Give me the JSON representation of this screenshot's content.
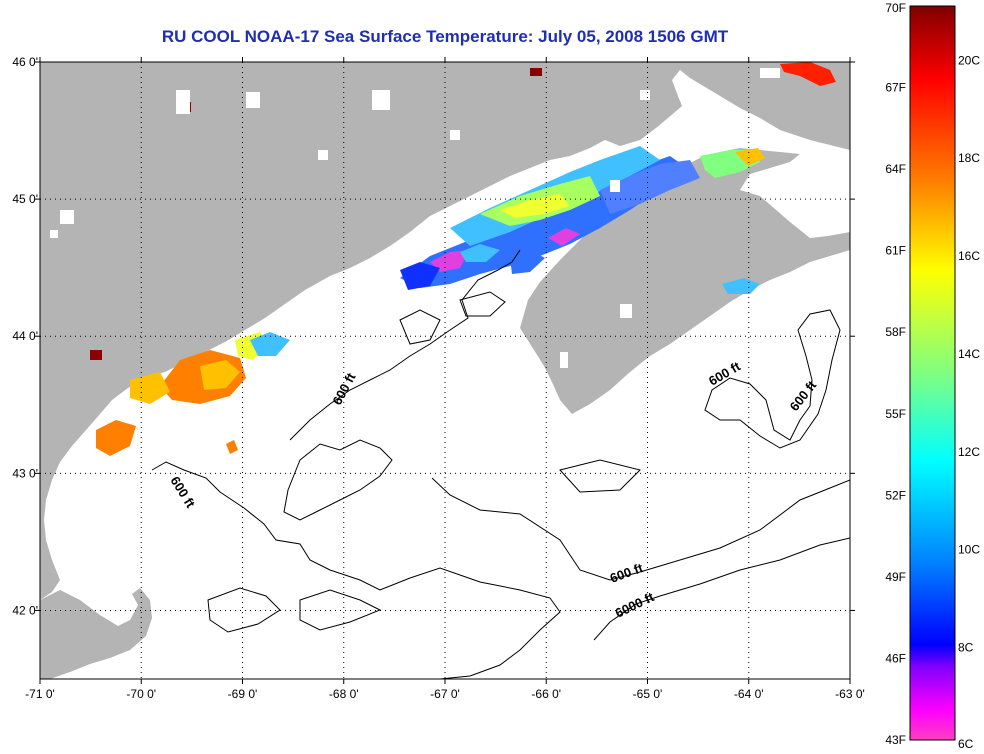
{
  "title": "RU COOL  NOAA-17  Sea Surface Temperature:  July 05, 2008 1506 GMT",
  "map": {
    "lon_range": [
      -71,
      -63
    ],
    "lat_range": [
      41.5,
      46
    ],
    "lon_ticks": [
      "-71 0'",
      "-70 0'",
      "-69 0'",
      "-68 0'",
      "-67 0'",
      "-66 0'",
      "-65 0'",
      "-64 0'",
      "-63 0'"
    ],
    "lat_ticks": [
      "46 0'",
      "45 0'",
      "44 0'",
      "43 0'",
      "42 0'"
    ],
    "grid": true,
    "land_color": "#b4b4b4",
    "contour_labels": [
      "600 ft",
      "600 ft",
      "600 ft",
      "600 ft",
      "600 ft",
      "6000 ft"
    ]
  },
  "colorbar": {
    "fahrenheit_labels": [
      "70F",
      "67F",
      "64F",
      "61F",
      "58F",
      "55F",
      "52F",
      "49F",
      "46F",
      "43F"
    ],
    "celsius_labels": [
      "20C",
      "18C",
      "16C",
      "14C",
      "12C",
      "10C",
      "8C",
      "6C"
    ],
    "colors_top_to_bottom": [
      "#800000",
      "#ff0000",
      "#ff8000",
      "#ffff00",
      "#80ff80",
      "#00ffff",
      "#0080ff",
      "#0000ff",
      "#8000ff",
      "#ff00ff",
      "#ff40c0"
    ]
  }
}
